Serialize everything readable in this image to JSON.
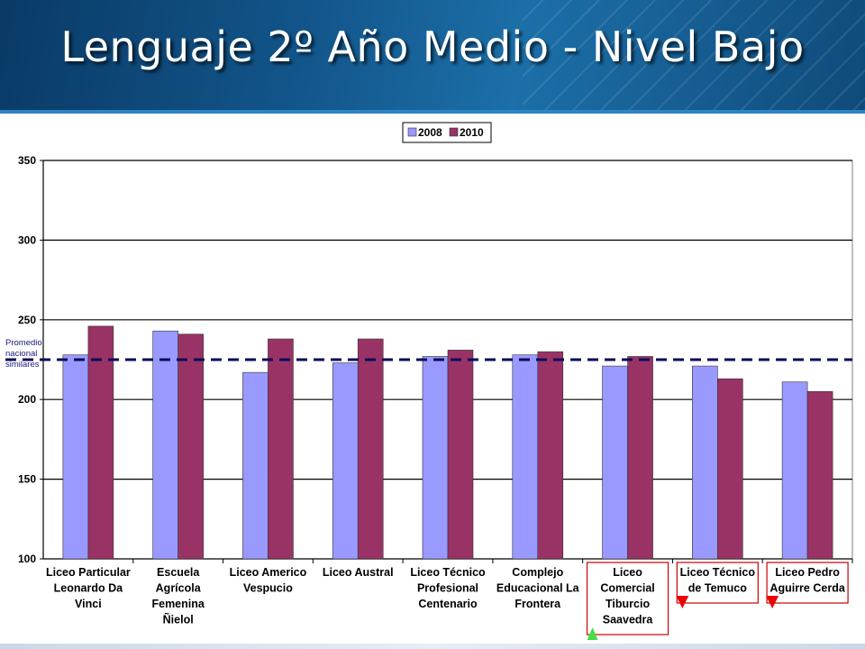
{
  "slide": {
    "title": "Lenguaje 2º Año Medio - Nivel Bajo"
  },
  "chart_data": {
    "type": "bar",
    "categories": [
      [
        "Liceo Particular",
        "Leonardo Da",
        "Vinci"
      ],
      [
        "Escuela",
        "Agrícola",
        "Femenina",
        "Ñielol"
      ],
      [
        "Liceo Americo",
        "Vespucio"
      ],
      [
        "Liceo Austral"
      ],
      [
        "Liceo Técnico",
        "Profesional",
        "Centenario"
      ],
      [
        "Complejo",
        "Educacional La",
        "Frontera"
      ],
      [
        "Liceo",
        "Comercial",
        "Tiburcio",
        "Saavedra"
      ],
      [
        "Liceo Técnico",
        "de Temuco"
      ],
      [
        "Liceo Pedro",
        "Aguirre Cerda"
      ]
    ],
    "series": [
      {
        "name": "2008",
        "color": "#9999ff",
        "values": [
          228,
          243,
          217,
          223,
          227,
          228,
          221,
          221,
          211
        ]
      },
      {
        "name": "2010",
        "color": "#993366",
        "values": [
          246,
          241,
          238,
          238,
          231,
          230,
          227,
          213,
          205
        ]
      }
    ],
    "ylim": [
      100,
      350
    ],
    "yticks": [
      100,
      150,
      200,
      250,
      300,
      350
    ],
    "reference_line": {
      "value": 225,
      "label": [
        "Promedio",
        "nacional",
        "similares"
      ],
      "color": "#0a0a5a"
    },
    "legend_position": "top-center",
    "grid": true,
    "highlighted_categories": [
      {
        "index": 6,
        "trend": "up",
        "color": "#44dd44"
      },
      {
        "index": 7,
        "trend": "down",
        "color": "#ee0000"
      },
      {
        "index": 8,
        "trend": "down",
        "color": "#ee0000"
      }
    ]
  }
}
